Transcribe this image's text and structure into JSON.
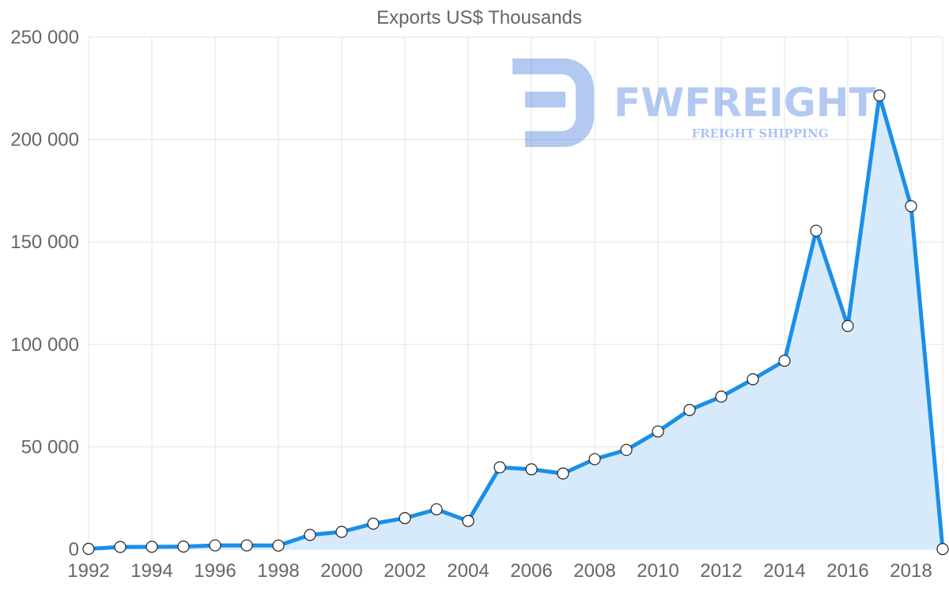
{
  "chart_data": {
    "type": "area",
    "title": "Exports US$ Thousands",
    "xlabel": "",
    "ylabel": "",
    "x": [
      1992,
      1993,
      1994,
      1995,
      1996,
      1997,
      1998,
      1999,
      2000,
      2001,
      2002,
      2003,
      2004,
      2005,
      2006,
      2007,
      2008,
      2009,
      2010,
      2011,
      2012,
      2013,
      2014,
      2015,
      2016,
      2017,
      2018,
      2019
    ],
    "values": [
      200,
      1100,
      1200,
      1300,
      1900,
      1900,
      1800,
      7000,
      8500,
      12500,
      15200,
      19500,
      13800,
      40000,
      39000,
      37000,
      44000,
      48500,
      57500,
      68000,
      74500,
      83000,
      92000,
      155500,
      109000,
      221500,
      167500,
      100
    ],
    "xlim": [
      1992,
      2019
    ],
    "ylim": [
      0,
      250000
    ],
    "y_ticks": [
      0,
      50000,
      100000,
      150000,
      200000,
      250000
    ],
    "y_tick_labels": [
      "0",
      "50 000",
      "100 000",
      "150 000",
      "200 000",
      "250 000"
    ],
    "x_ticks": [
      1992,
      1994,
      1996,
      1998,
      2000,
      2002,
      2004,
      2006,
      2008,
      2010,
      2012,
      2014,
      2016,
      2018
    ],
    "x_tick_labels": [
      "1992",
      "1994",
      "1996",
      "1998",
      "2000",
      "2002",
      "2004",
      "2006",
      "2008",
      "2010",
      "2012",
      "2014",
      "2016",
      "2018"
    ],
    "grid": true,
    "line_color": "#1a8fe8",
    "fill_color": "#d6eafb"
  },
  "watermark": {
    "brand": "FWFREIGHT",
    "tagline": "FREIGHT SHIPPING",
    "color": "#2563d9"
  }
}
